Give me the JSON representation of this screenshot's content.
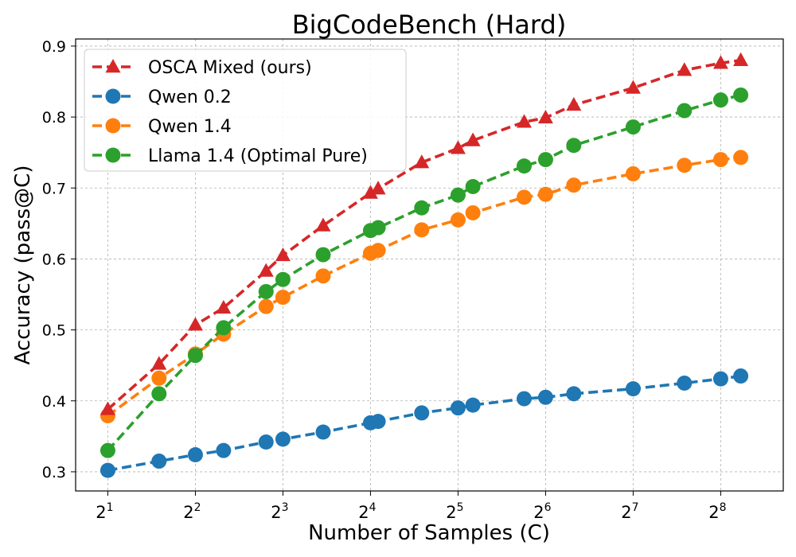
{
  "chart_data": {
    "type": "line",
    "title": "BigCodeBench (Hard)",
    "xlabel": "Number of Samples (C)",
    "ylabel": "Accuracy (pass@C)",
    "x_scale": "log2",
    "xlim": [
      1.55,
      420
    ],
    "ylim": [
      0.273,
      0.91
    ],
    "x_ticks": [
      {
        "value": 2,
        "base": "2",
        "exp": "1"
      },
      {
        "value": 4,
        "base": "2",
        "exp": "2"
      },
      {
        "value": 8,
        "base": "2",
        "exp": "3"
      },
      {
        "value": 16,
        "base": "2",
        "exp": "4"
      },
      {
        "value": 32,
        "base": "2",
        "exp": "5"
      },
      {
        "value": 64,
        "base": "2",
        "exp": "6"
      },
      {
        "value": 128,
        "base": "2",
        "exp": "7"
      },
      {
        "value": 256,
        "base": "2",
        "exp": "8"
      }
    ],
    "y_ticks": [
      {
        "value": 0.3,
        "label": "0.3"
      },
      {
        "value": 0.4,
        "label": "0.4"
      },
      {
        "value": 0.5,
        "label": "0.5"
      },
      {
        "value": 0.6,
        "label": "0.6"
      },
      {
        "value": 0.7,
        "label": "0.7"
      },
      {
        "value": 0.8,
        "label": "0.8"
      },
      {
        "value": 0.9,
        "label": "0.9"
      }
    ],
    "grid": true,
    "legend_position": "top-left",
    "x": [
      2,
      3,
      4,
      5,
      7,
      8,
      11,
      16,
      17,
      24,
      32,
      36,
      54,
      64,
      80,
      128,
      192,
      256,
      300
    ],
    "series": [
      {
        "name": "OSCA Mixed (ours)",
        "color": "#d62728",
        "marker": "triangle",
        "values": [
          0.388,
          0.452,
          0.507,
          0.531,
          0.583,
          0.605,
          0.647,
          0.693,
          0.699,
          0.736,
          0.756,
          0.767,
          0.793,
          0.799,
          0.817,
          0.841,
          0.866,
          0.876,
          0.88
        ]
      },
      {
        "name": "Qwen 0.2",
        "color": "#1f77b4",
        "marker": "circle",
        "values": [
          0.302,
          0.315,
          0.324,
          0.33,
          0.342,
          0.346,
          0.356,
          0.369,
          0.371,
          0.383,
          0.39,
          0.394,
          0.403,
          0.405,
          0.41,
          0.417,
          0.425,
          0.431,
          0.435
        ]
      },
      {
        "name": "Qwen 1.4",
        "color": "#ff7f0e",
        "marker": "circle",
        "values": [
          0.379,
          0.432,
          0.466,
          0.494,
          0.533,
          0.546,
          0.576,
          0.608,
          0.612,
          0.641,
          0.655,
          0.665,
          0.687,
          0.691,
          0.704,
          0.72,
          0.732,
          0.74,
          0.743
        ]
      },
      {
        "name": "Llama 1.4 (Optimal Pure)",
        "color": "#2ca02c",
        "marker": "circle",
        "values": [
          0.33,
          0.41,
          0.464,
          0.503,
          0.554,
          0.571,
          0.606,
          0.64,
          0.644,
          0.672,
          0.69,
          0.702,
          0.731,
          0.74,
          0.76,
          0.786,
          0.809,
          0.824,
          0.831
        ]
      }
    ]
  }
}
